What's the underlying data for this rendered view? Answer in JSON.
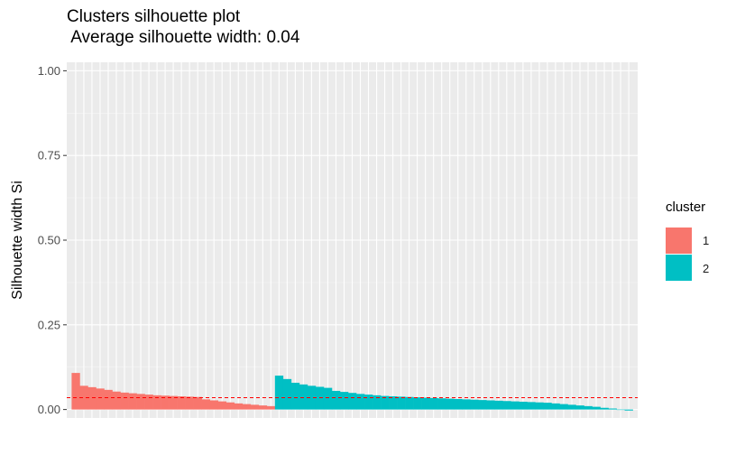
{
  "chart_data": {
    "type": "bar",
    "title_line1": "Clusters silhouette plot",
    "title_line2": " Average silhouette width: 0.04",
    "xlabel": "",
    "ylabel": "Silhouette width Si",
    "ylim": [
      -0.025,
      1.025
    ],
    "y_ticks": [
      0.0,
      0.25,
      0.5,
      0.75,
      1.0
    ],
    "y_tick_labels": [
      "0.00",
      "0.25",
      "0.50",
      "0.75",
      "1.00"
    ],
    "average_line": 0.035,
    "grid": true,
    "legend": {
      "title": "cluster",
      "position": "right"
    },
    "series": [
      {
        "name": "1",
        "color": "#F8766D",
        "values": [
          0.108,
          0.07,
          0.066,
          0.062,
          0.058,
          0.053,
          0.05,
          0.048,
          0.046,
          0.044,
          0.042,
          0.041,
          0.04,
          0.039,
          0.038,
          0.037,
          0.03,
          0.027,
          0.024,
          0.021,
          0.018,
          0.016,
          0.014,
          0.012,
          0.01
        ]
      },
      {
        "name": "2",
        "color": "#00BFC4",
        "values": [
          0.1,
          0.09,
          0.079,
          0.074,
          0.07,
          0.067,
          0.064,
          0.055,
          0.052,
          0.049,
          0.046,
          0.044,
          0.042,
          0.04,
          0.039,
          0.038,
          0.037,
          0.036,
          0.035,
          0.034,
          0.033,
          0.032,
          0.031,
          0.03,
          0.029,
          0.028,
          0.027,
          0.026,
          0.025,
          0.024,
          0.023,
          0.022,
          0.021,
          0.02,
          0.018,
          0.016,
          0.014,
          0.012,
          0.01,
          0.008,
          0.005,
          0.003,
          0.0,
          -0.003
        ]
      }
    ]
  }
}
